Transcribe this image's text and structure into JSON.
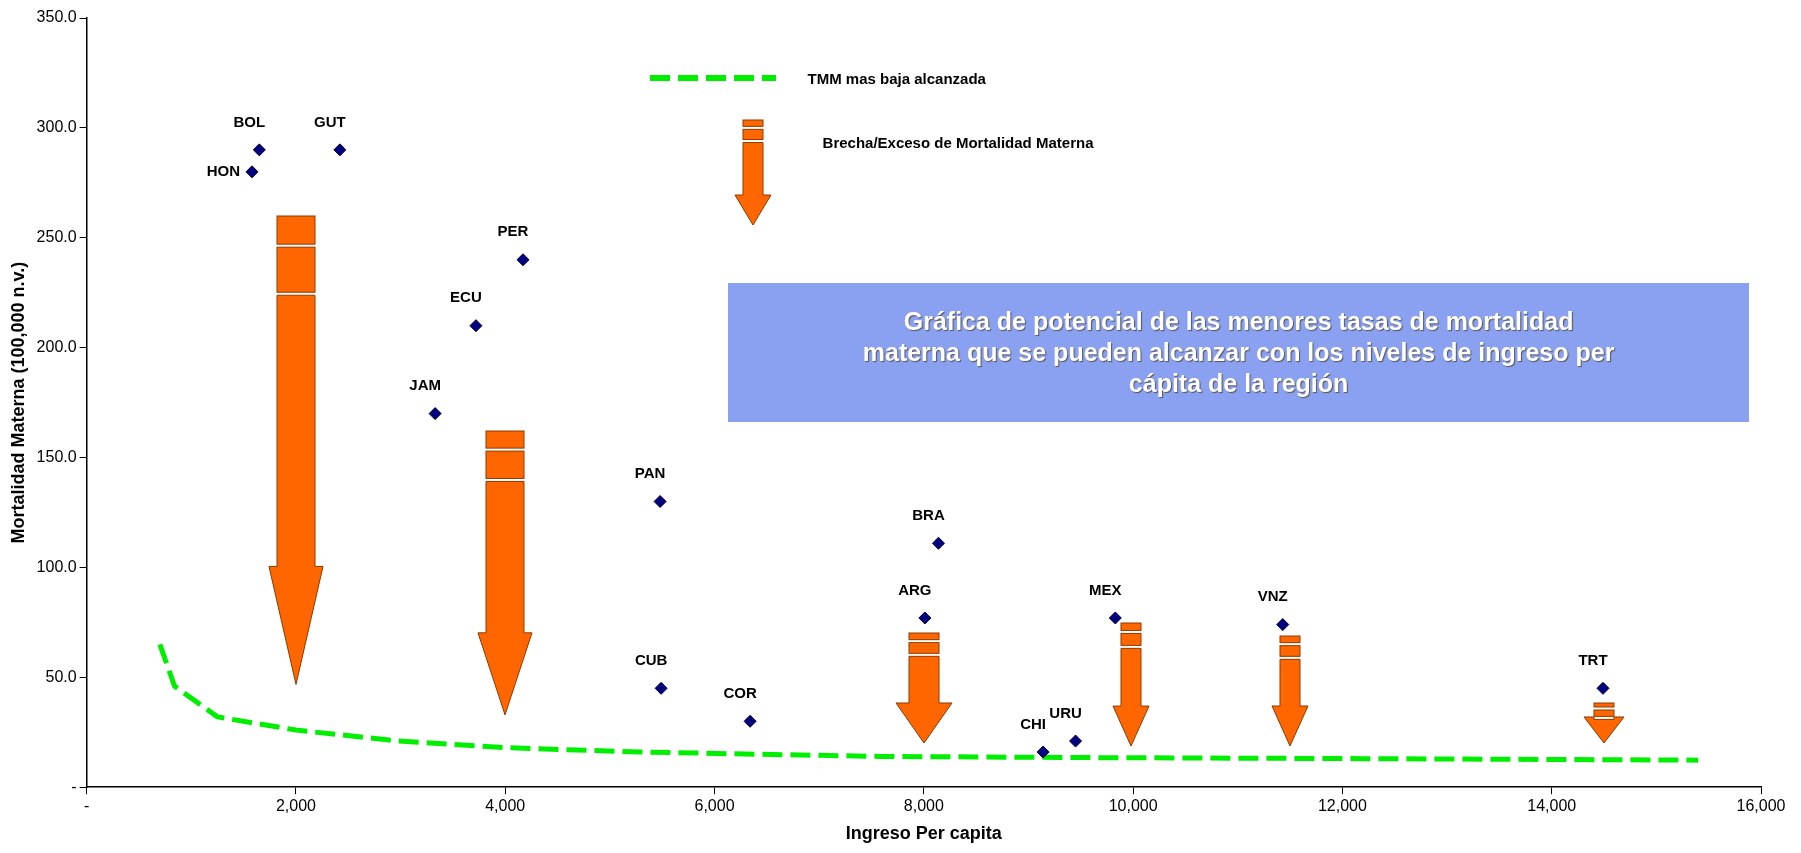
{
  "chart_data": {
    "type": "scatter",
    "xlabel": "Ingreso Per capita",
    "ylabel": "Mortalidad Materna (100,000 n.v.)",
    "xlim": [
      0,
      16000
    ],
    "ylim": [
      0,
      350
    ],
    "xticks": [
      {
        "value": 0,
        "label": "-"
      },
      {
        "value": 2000,
        "label": "2,000"
      },
      {
        "value": 4000,
        "label": "4,000"
      },
      {
        "value": 6000,
        "label": "6,000"
      },
      {
        "value": 8000,
        "label": "8,000"
      },
      {
        "value": 10000,
        "label": "10,000"
      },
      {
        "value": 12000,
        "label": "12,000"
      },
      {
        "value": 14000,
        "label": "14,000"
      },
      {
        "value": 16000,
        "label": "16,000"
      }
    ],
    "yticks": [
      {
        "value": 0,
        "label": "-"
      },
      {
        "value": 50,
        "label": "50.0"
      },
      {
        "value": 100,
        "label": "100.0"
      },
      {
        "value": 150,
        "label": "150.0"
      },
      {
        "value": 200,
        "label": "200.0"
      },
      {
        "value": 250,
        "label": "250.0"
      },
      {
        "value": 300,
        "label": "300.0"
      },
      {
        "value": 350,
        "label": "350.0"
      }
    ],
    "grid": false,
    "legend": "top",
    "series": [
      {
        "marker": "diamond",
        "color": "#000080",
        "x": [
          1580,
          1650,
          2420,
          4170,
          3720,
          3330,
          5480,
          5490,
          6340,
          8140,
          8010,
          9140,
          9450,
          9830,
          11430,
          14490
        ],
        "values": [
          280,
          290,
          290,
          240,
          210,
          170,
          130,
          45,
          30,
          111,
          77,
          16,
          21,
          77,
          74,
          45
        ],
        "value_labels": [
          "HON",
          "BOL",
          "GUT",
          "PER",
          "ECU",
          "JAM",
          "PAN",
          "CUB",
          "COR",
          "BRA",
          "ARG",
          "CHI",
          "URU",
          "MEX",
          "VNZ",
          "TRT"
        ]
      },
      {
        "type": "line",
        "marker": "none",
        "name": "TMM mas baja alcanzada",
        "color": "#00ee00",
        "line_style": "dashed",
        "x": [
          700,
          840,
          1250,
          2000,
          2980,
          4000,
          5280,
          7580,
          9880,
          12190,
          15400
        ],
        "values": [
          65,
          46,
          32,
          26,
          21,
          18,
          16,
          14,
          13.4,
          13,
          12.3
        ]
      }
    ],
    "annotations": [
      "Brecha/Exceso de Mortalidad Materna",
      "Gráfica de potencial de las menores tasas de mortalidad materna que se pueden alcanzar con los niveles de ingreso per cápita de la región"
    ]
  }
}
